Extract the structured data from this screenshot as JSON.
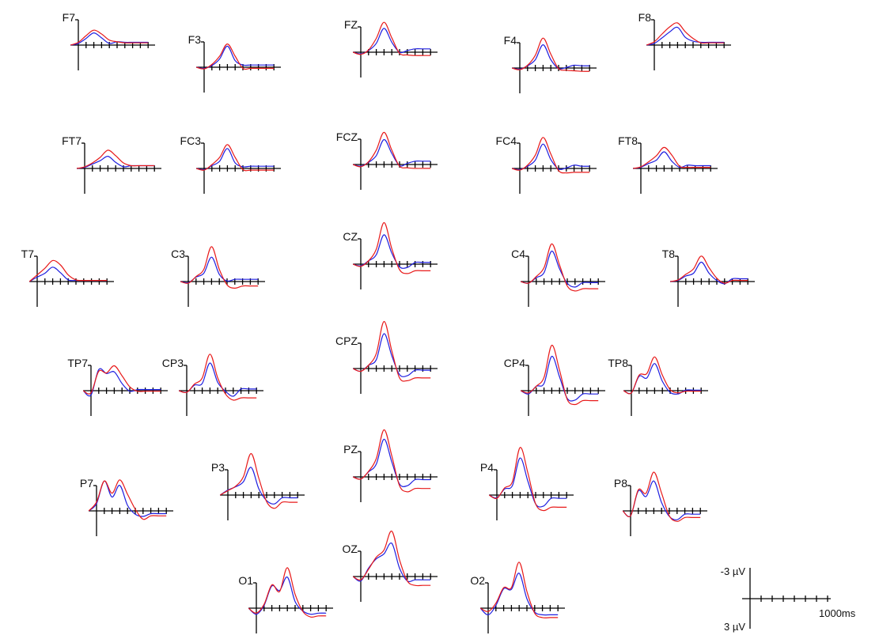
{
  "chart_data": {
    "type": "line",
    "title": "",
    "xlabel": "",
    "ylabel": "",
    "scale_bar": {
      "amplitude_top": "-3 µV",
      "amplitude_bottom": "3 µV",
      "time": "1000ms"
    },
    "colors": {
      "blue": "#1f1fe0",
      "red": "#e81a1a"
    },
    "series_colors": [
      "blue",
      "red"
    ],
    "y_axis_negative_up": true,
    "channels": [
      "F7",
      "F3",
      "FZ",
      "F4",
      "F8",
      "FT7",
      "FC3",
      "FCZ",
      "FC4",
      "FT8",
      "T7",
      "C3",
      "CZ",
      "C4",
      "T8",
      "TP7",
      "CP3",
      "CPZ",
      "CP4",
      "TP8",
      "P7",
      "P3",
      "PZ",
      "P4",
      "P8",
      "O1",
      "OZ",
      "O2"
    ],
    "x_ms": [
      -100,
      0,
      100,
      200,
      300,
      400,
      500,
      600,
      700,
      800,
      900
    ],
    "waveforms": {
      "F7": {
        "blue": [
          0,
          -0.3,
          -1.2,
          -2.2,
          -1.3,
          -0.3,
          -0.6,
          -0.5,
          -0.5,
          -0.5,
          -0.5
        ],
        "red": [
          0,
          -0.5,
          -1.7,
          -2.7,
          -2.0,
          -0.9,
          -0.6,
          -0.4,
          -0.4,
          -0.4,
          -0.4
        ]
      },
      "F3": {
        "blue": [
          0,
          0.2,
          -0.3,
          -1.5,
          -3.8,
          -1.2,
          -0.4,
          -0.4,
          -0.4,
          -0.4,
          -0.4
        ],
        "red": [
          0,
          0.3,
          -0.5,
          -2.0,
          -4.2,
          -2.0,
          0.2,
          0.2,
          0.2,
          0.2,
          0.2
        ]
      },
      "FZ": {
        "blue": [
          0,
          0.3,
          -0.3,
          -1.6,
          -4.3,
          -1.8,
          0.0,
          -0.3,
          -0.6,
          -0.6,
          -0.6
        ],
        "red": [
          0,
          0.4,
          -0.4,
          -2.5,
          -5.4,
          -2.6,
          0.2,
          0.5,
          0.6,
          0.6,
          0.6
        ]
      },
      "F4": {
        "blue": [
          0,
          0.2,
          -0.4,
          -1.5,
          -4.2,
          -1.5,
          0.1,
          -0.1,
          -0.5,
          -0.4,
          -0.4
        ],
        "red": [
          0,
          0.3,
          -0.5,
          -2.3,
          -5.4,
          -2.5,
          0.1,
          0.4,
          0.5,
          0.6,
          0.6
        ]
      },
      "F8": {
        "blue": [
          0,
          -0.3,
          -1.3,
          -2.4,
          -3.2,
          -1.4,
          -0.7,
          -0.5,
          -0.5,
          -0.5,
          -0.5
        ],
        "red": [
          0,
          -0.6,
          -2.0,
          -3.3,
          -4.0,
          -2.4,
          -1.2,
          -0.4,
          -0.4,
          -0.4,
          -0.4
        ]
      },
      "FT7": {
        "blue": [
          0,
          -0.2,
          -0.8,
          -1.4,
          -2.2,
          -1.1,
          -0.3,
          -0.5,
          -0.5,
          -0.5,
          -0.5
        ],
        "red": [
          0,
          -0.3,
          -1.0,
          -2.0,
          -3.3,
          -2.3,
          -1.0,
          -0.5,
          -0.5,
          -0.5,
          -0.5
        ]
      },
      "FC3": {
        "blue": [
          0,
          0.2,
          -0.5,
          -1.3,
          -3.6,
          -1.0,
          -0.3,
          -0.4,
          -0.4,
          -0.4,
          -0.4
        ],
        "red": [
          0,
          0.3,
          -0.7,
          -2.0,
          -4.3,
          -2.0,
          0.2,
          0.3,
          0.3,
          0.3,
          0.3
        ]
      },
      "FCZ": {
        "blue": [
          0,
          0.3,
          -0.4,
          -1.6,
          -4.5,
          -2.0,
          0.2,
          -0.2,
          -0.6,
          -0.6,
          -0.6
        ],
        "red": [
          0,
          0.4,
          -0.5,
          -2.6,
          -5.8,
          -2.6,
          0.3,
          0.6,
          0.7,
          0.7,
          0.7
        ]
      },
      "FC4": {
        "blue": [
          0,
          0.2,
          -0.4,
          -1.5,
          -4.4,
          -1.6,
          0.1,
          -0.1,
          -0.6,
          -0.4,
          -0.4
        ],
        "red": [
          0,
          0.3,
          -0.6,
          -2.4,
          -5.6,
          -2.6,
          0.4,
          0.8,
          0.7,
          0.7,
          0.7
        ]
      },
      "FT8": {
        "blue": [
          0,
          -0.2,
          -0.9,
          -1.5,
          -3.0,
          -1.3,
          -0.2,
          -0.6,
          -0.5,
          -0.5,
          -0.5
        ],
        "red": [
          0,
          -0.3,
          -1.2,
          -2.3,
          -3.8,
          -2.4,
          -0.4,
          -0.2,
          -0.2,
          -0.2,
          -0.2
        ]
      },
      "T7": {
        "blue": [
          0,
          -0.8,
          -1.5,
          -2.6,
          -1.6,
          -0.3,
          -0.2,
          -0.2,
          -0.2,
          -0.2,
          -0.2
        ],
        "red": [
          0,
          -1.2,
          -2.4,
          -3.8,
          -3.0,
          -1.2,
          -0.3,
          -0.2,
          -0.2,
          -0.2,
          -0.2
        ]
      },
      "C3": {
        "blue": [
          0,
          0.2,
          -0.8,
          -1.5,
          -4.4,
          -1.3,
          -0.1,
          -0.4,
          -0.4,
          -0.4,
          -0.4
        ],
        "red": [
          0,
          0.3,
          -0.9,
          -2.2,
          -6.3,
          -2.2,
          0.6,
          1.2,
          0.8,
          0.8,
          0.8
        ]
      },
      "CZ": {
        "blue": [
          0,
          0.3,
          -0.6,
          -1.7,
          -5.3,
          -2.0,
          0.5,
          0.6,
          -0.3,
          -0.3,
          -0.3
        ],
        "red": [
          0,
          0.4,
          -0.6,
          -2.7,
          -7.5,
          -2.8,
          1.0,
          1.7,
          1.2,
          1.2,
          1.2
        ]
      },
      "C4": {
        "blue": [
          0,
          0.3,
          -0.7,
          -1.6,
          -5.5,
          -2.3,
          0.3,
          1.0,
          0.2,
          0.2,
          0.2
        ],
        "red": [
          0,
          0.3,
          -0.9,
          -2.5,
          -6.8,
          -3.0,
          0.8,
          1.7,
          1.3,
          1.3,
          1.3
        ]
      },
      "T8": {
        "blue": [
          0,
          -0.2,
          -1.0,
          -1.5,
          -3.5,
          -1.5,
          -0.2,
          0.4,
          -0.5,
          -0.5,
          -0.5
        ],
        "red": [
          0,
          -0.3,
          -1.3,
          -2.3,
          -4.6,
          -2.5,
          -0.6,
          0.3,
          -0.2,
          -0.2,
          -0.2
        ]
      },
      "TP7": {
        "blue": [
          0,
          0.8,
          -3.8,
          -3.1,
          -3.4,
          -1.3,
          0.1,
          -0.2,
          -0.2,
          -0.2,
          -0.2
        ],
        "red": [
          0,
          0.4,
          -3.5,
          -3.2,
          -4.5,
          -2.7,
          -0.7,
          0.1,
          0.1,
          0.1,
          0.1
        ]
      },
      "CP3": {
        "blue": [
          0,
          0.3,
          -1.0,
          -1.3,
          -5.0,
          -1.5,
          0.1,
          1.0,
          -0.3,
          -0.3,
          -0.3
        ],
        "red": [
          0,
          0.3,
          -1.2,
          -2.3,
          -6.6,
          -2.3,
          0.6,
          1.7,
          1.3,
          1.3,
          1.3
        ]
      },
      "CPZ": {
        "blue": [
          0,
          0.5,
          -0.6,
          -1.6,
          -6.3,
          -2.3,
          1.1,
          1.3,
          0.3,
          0.3,
          0.3
        ],
        "red": [
          0,
          0.5,
          -0.6,
          -2.7,
          -8.5,
          -3.2,
          1.7,
          2.2,
          1.7,
          1.7,
          1.7
        ]
      },
      "CP4": {
        "blue": [
          0,
          0.6,
          -0.8,
          -1.3,
          -6.2,
          -2.5,
          1.4,
          1.7,
          0.6,
          0.6,
          0.6
        ],
        "red": [
          0,
          0.4,
          -0.8,
          -2.4,
          -8.2,
          -3.7,
          1.6,
          2.5,
          1.8,
          1.8,
          1.8
        ]
      },
      "TP8": {
        "blue": [
          0,
          0.4,
          -2.6,
          -2.3,
          -4.9,
          -1.7,
          0.3,
          0.6,
          -0.1,
          -0.1,
          -0.1
        ],
        "red": [
          0,
          0.4,
          -2.8,
          -3.1,
          -6.1,
          -2.8,
          -0.2,
          0.4,
          0.1,
          0.1,
          0.1
        ]
      },
      "P7": {
        "blue": [
          0,
          -1.3,
          -5.4,
          -2.5,
          -4.6,
          -1.0,
          0.6,
          1.0,
          0.5,
          0.5,
          0.5
        ],
        "red": [
          0,
          -1.6,
          -5.4,
          -3.2,
          -5.6,
          -3.0,
          -0.3,
          1.5,
          0.9,
          0.9,
          0.9
        ]
      },
      "P3": {
        "blue": [
          0,
          -0.9,
          -1.5,
          -2.4,
          -5.0,
          -1.1,
          1.0,
          1.6,
          0.5,
          0.5,
          0.5
        ],
        "red": [
          0,
          -0.8,
          -1.6,
          -3.3,
          -7.5,
          -3.0,
          1.2,
          2.4,
          1.3,
          1.3,
          1.3
        ]
      },
      "PZ": {
        "blue": [
          0,
          0.4,
          -0.9,
          -2.3,
          -6.8,
          -2.7,
          1.3,
          1.6,
          0.5,
          0.5,
          0.5
        ],
        "red": [
          0,
          0.4,
          -1.0,
          -3.3,
          -8.5,
          -3.8,
          1.6,
          2.7,
          2.1,
          2.1,
          2.1
        ]
      },
      "P4": {
        "blue": [
          0,
          0.5,
          -1.1,
          -1.7,
          -6.7,
          -2.5,
          1.6,
          2.0,
          0.6,
          0.6,
          0.6
        ],
        "red": [
          0,
          0.6,
          -1.3,
          -2.4,
          -8.6,
          -4.0,
          1.6,
          2.8,
          2.2,
          2.2,
          2.2
        ]
      },
      "P8": {
        "blue": [
          0,
          0.9,
          -3.6,
          -2.6,
          -5.4,
          -1.5,
          1.0,
          1.6,
          0.6,
          0.6,
          0.6
        ],
        "red": [
          0,
          0.9,
          -3.8,
          -3.2,
          -7.0,
          -3.2,
          0.9,
          1.9,
          1.2,
          1.2,
          1.2
        ]
      },
      "O1": {
        "blue": [
          0,
          1.1,
          -0.5,
          -4.0,
          -3.2,
          -5.6,
          -1.2,
          0.5,
          1.1,
          0.9,
          0.9
        ],
        "red": [
          0,
          0.9,
          -0.7,
          -4.2,
          -3.0,
          -7.3,
          -2.5,
          0.6,
          1.6,
          1.4,
          1.4
        ]
      },
      "OZ": {
        "blue": [
          0,
          0.8,
          -1.5,
          -3.2,
          -4.1,
          -6.0,
          -1.5,
          0.8,
          0.6,
          0.6,
          0.6
        ],
        "red": [
          0,
          0.6,
          -1.3,
          -3.5,
          -4.8,
          -8.2,
          -3.0,
          0.8,
          1.6,
          1.6,
          1.6
        ]
      },
      "O2": {
        "blue": [
          0,
          1.2,
          -0.5,
          -3.5,
          -3.4,
          -6.3,
          -1.7,
          0.7,
          1.2,
          1.2,
          1.2
        ],
        "red": [
          0,
          0.6,
          -0.9,
          -3.7,
          -3.7,
          -8.3,
          -3.0,
          0.9,
          1.7,
          1.7,
          1.7
        ]
      }
    }
  }
}
